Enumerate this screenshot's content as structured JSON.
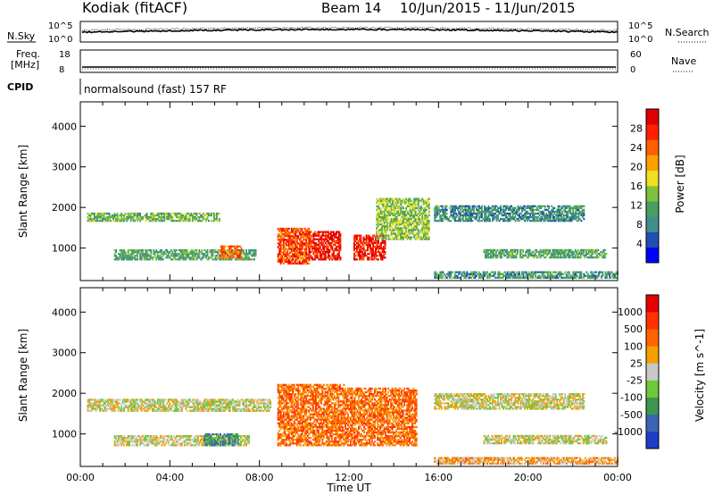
{
  "header": {
    "radar": "Kodiak (fitACF)",
    "beam": "Beam 14",
    "date_range": "10/Jun/2015 - 11/Jun/2015"
  },
  "noise_panel": {
    "left_label": "N.Sky",
    "right_label": "N.Search",
    "tick_top": "10^5",
    "tick_bottom": "10^0"
  },
  "freq_panel": {
    "left_label_1": "Freq.",
    "left_label_2": "[MHz]",
    "right_label": "Nave",
    "left_tick_top": "18",
    "left_tick_bottom": "8",
    "right_tick_top": "60",
    "right_tick_bottom": "0"
  },
  "cpid_panel": {
    "label": "CPID",
    "program": "normalsound (fast) 157 RF"
  },
  "chart_data": [
    {
      "type": "heatmap",
      "title": "Power",
      "xlabel": "",
      "ylabel": "Slant Range [km]",
      "xlim": [
        "00:00",
        "24:00"
      ],
      "ylim": [
        200,
        4600
      ],
      "yticks": [
        "1000",
        "2000",
        "3000",
        "4000"
      ],
      "colorbar": {
        "label": "Power [dB]",
        "ticks": [
          "4",
          "8",
          "12",
          "16",
          "20",
          "24",
          "28"
        ],
        "colors": [
          "#0000ff",
          "#2050b0",
          "#3f8f8f",
          "#48a060",
          "#80c040",
          "#f0e020",
          "#ffa000",
          "#ff6000",
          "#ff2000",
          "#e00000"
        ]
      },
      "echo_regions": [
        {
          "start_h": 0.3,
          "end_h": 6.2,
          "range_km": [
            1650,
            1850
          ],
          "level": 0.4
        },
        {
          "start_h": 1.5,
          "end_h": 7.8,
          "range_km": [
            700,
            950
          ],
          "level": 0.35
        },
        {
          "start_h": 6.2,
          "end_h": 7.2,
          "range_km": [
            750,
            1050
          ],
          "level": 0.75
        },
        {
          "start_h": 8.8,
          "end_h": 10.2,
          "range_km": [
            600,
            1500
          ],
          "level": 0.8
        },
        {
          "start_h": 10.2,
          "end_h": 11.6,
          "range_km": [
            700,
            1400
          ],
          "level": 0.9
        },
        {
          "start_h": 12.2,
          "end_h": 13.6,
          "range_km": [
            700,
            1300
          ],
          "level": 0.9
        },
        {
          "start_h": 13.2,
          "end_h": 15.6,
          "range_km": [
            1200,
            2200
          ],
          "level": 0.45
        },
        {
          "start_h": 15.8,
          "end_h": 22.5,
          "range_km": [
            1650,
            2050
          ],
          "level": 0.28
        },
        {
          "start_h": 18.0,
          "end_h": 23.5,
          "range_km": [
            750,
            950
          ],
          "level": 0.35
        },
        {
          "start_h": 15.8,
          "end_h": 24.0,
          "range_km": [
            250,
            400
          ],
          "level": 0.3
        }
      ]
    },
    {
      "type": "heatmap",
      "title": "Velocity",
      "xlabel": "Time UT",
      "ylabel": "Slant Range [km]",
      "xlim": [
        "00:00",
        "24:00"
      ],
      "ylim": [
        200,
        4600
      ],
      "xticks": [
        "00:00",
        "04:00",
        "08:00",
        "12:00",
        "16:00",
        "20:00",
        "00:00"
      ],
      "yticks": [
        "1000",
        "2000",
        "3000",
        "4000"
      ],
      "colorbar": {
        "label": "Velocity [m s^-1]",
        "ticks": [
          "1000",
          "500",
          "100",
          "25",
          "-25",
          "-100",
          "-500",
          "-1000"
        ],
        "colors": [
          "#1e3cc8",
          "#3c64b4",
          "#3c9650",
          "#6ec83c",
          "#c8c8c8",
          "#f5a000",
          "#ff6400",
          "#ff3200",
          "#e60000"
        ]
      },
      "echo_regions": [
        {
          "start_h": 0.3,
          "end_h": 8.5,
          "range_km": [
            1550,
            1850
          ],
          "level": 0.5
        },
        {
          "start_h": 1.5,
          "end_h": 7.5,
          "range_km": [
            700,
            950
          ],
          "level": 0.5
        },
        {
          "start_h": 5.5,
          "end_h": 7.0,
          "range_km": [
            700,
            1000
          ],
          "level": 0.25
        },
        {
          "start_h": 8.8,
          "end_h": 11.8,
          "range_km": [
            700,
            2200
          ],
          "level": 0.72
        },
        {
          "start_h": 11.8,
          "end_h": 15.0,
          "range_km": [
            700,
            2100
          ],
          "level": 0.72
        },
        {
          "start_h": 15.8,
          "end_h": 22.5,
          "range_km": [
            1600,
            2000
          ],
          "level": 0.5
        },
        {
          "start_h": 18.0,
          "end_h": 23.5,
          "range_km": [
            750,
            950
          ],
          "level": 0.5
        },
        {
          "start_h": 15.8,
          "end_h": 24.0,
          "range_km": [
            250,
            400
          ],
          "level": 0.62
        }
      ]
    }
  ]
}
